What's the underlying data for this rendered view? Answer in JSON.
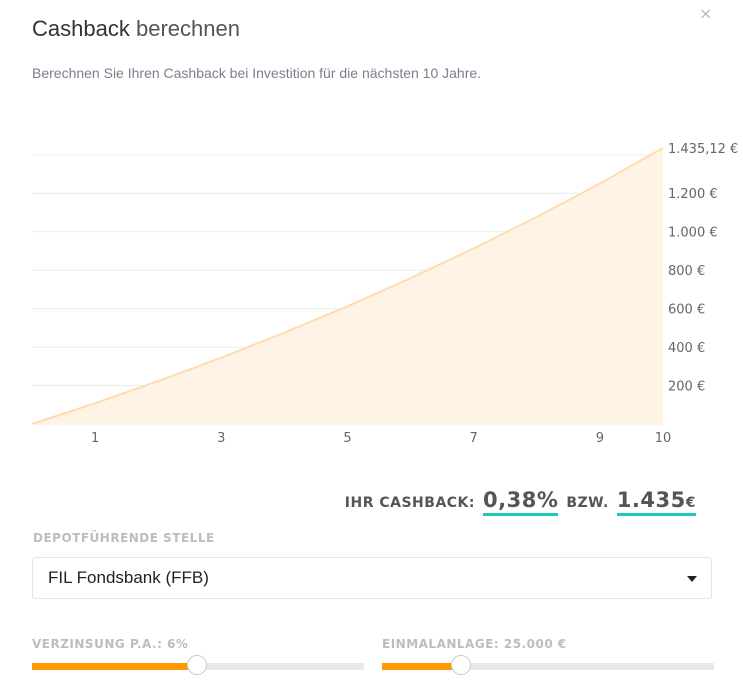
{
  "header": {
    "title_bold": "Cashback",
    "title_light": "berechnen",
    "close_label": "×",
    "subtitle": "Berechnen Sie Ihren Cashback bei Investition für die nächsten 10 Jahre."
  },
  "chart_data": {
    "type": "area",
    "x": [
      0,
      1,
      2,
      3,
      4,
      5,
      6,
      7,
      8,
      9,
      10
    ],
    "values": [
      0,
      108,
      223,
      345,
      475,
      612,
      758,
      913,
      1077,
      1250,
      1435.12
    ],
    "x_ticks": [
      "1",
      "3",
      "5",
      "7",
      "9",
      "10"
    ],
    "y_ticks": [
      "200 €",
      "400 €",
      "600 €",
      "800 €",
      "1.000 €",
      "1.200 €"
    ],
    "max_label": "1.435,12 €",
    "ylim": [
      0,
      1435.12
    ],
    "xlim": [
      0,
      10
    ],
    "grid": true,
    "fill_color": "#fff3e5",
    "line_color": "#ffdcb0"
  },
  "result": {
    "label": "IHR CASHBACK:",
    "percent": "0,38%",
    "connector": "BZW.",
    "amount": "1.435",
    "currency": "€",
    "underline_color": "#1ec8b4"
  },
  "depot": {
    "label": "DEPOTFÜHRENDE STELLE",
    "selected": "FIL Fondsbank (FFB)"
  },
  "sliders": [
    {
      "label": "VERZINSUNG P.A.: 6%",
      "fraction": 0.5
    },
    {
      "label": "EINMALANLAGE: 25.000 €",
      "fraction": 0.24
    }
  ],
  "accent": "#ff9900"
}
